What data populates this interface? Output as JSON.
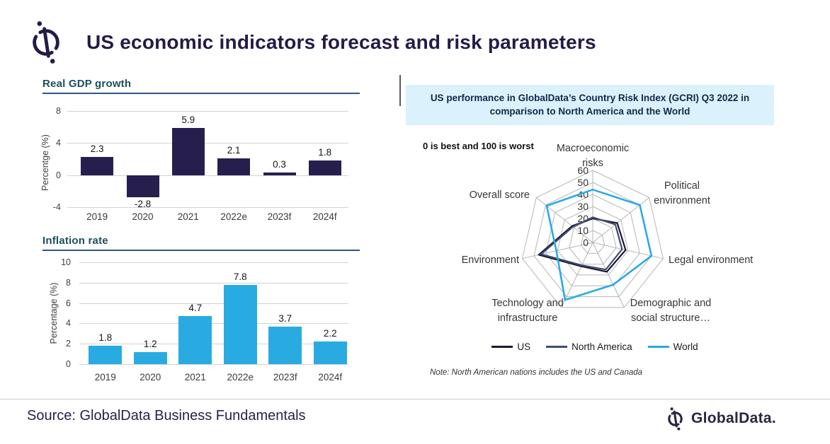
{
  "page": {
    "title": "US economic indicators forecast and risk parameters",
    "source": "Source: GlobalData Business Fundamentals",
    "brand": "GlobalData.",
    "accent_navy": "#221c46",
    "accent_blue": "#29abe2"
  },
  "chart_data": [
    {
      "type": "bar",
      "id": "gdp",
      "title": "Real GDP growth",
      "ylabel": "Percentge (%)",
      "categories": [
        "2019",
        "2020",
        "2021",
        "2022e",
        "2023f",
        "2024f"
      ],
      "values": [
        2.3,
        -2.8,
        5.9,
        2.1,
        0.3,
        1.8
      ],
      "value_labels": [
        "2.3",
        "-2.8",
        "5.9",
        "2.1",
        "0.3",
        "1.8"
      ],
      "yticks": [
        8,
        4,
        0,
        -4
      ],
      "ylim": [
        -4,
        8
      ],
      "bar_color": "#261f4d",
      "grid": true,
      "legend_position": "none"
    },
    {
      "type": "bar",
      "id": "inflation",
      "title": "Inflation rate",
      "ylabel": "Percentage (%)",
      "categories": [
        "2019",
        "2020",
        "2021",
        "2022e",
        "2023f",
        "2024f"
      ],
      "values": [
        1.8,
        1.2,
        4.7,
        7.8,
        3.7,
        2.2
      ],
      "value_labels": [
        "1.8",
        "1.2",
        "4.7",
        "7.8",
        "3.7",
        "2.2"
      ],
      "yticks": [
        10,
        8,
        6,
        4,
        2,
        0
      ],
      "ylim": [
        0,
        10
      ],
      "bar_color": "#29abe2",
      "grid": true,
      "legend_position": "none"
    },
    {
      "type": "radar",
      "id": "gcri",
      "title": "US performance in GlobalData’s Country Risk Index (GCRI) Q3 2022 in comparison to North America and the World",
      "subtitle": "0 is best and 100 is worst",
      "axes": [
        {
          "label": "Macroeconomic risks",
          "lines": [
            "Macroeconomic",
            "risks"
          ]
        },
        {
          "label": "Political environment",
          "lines": [
            "Political",
            "environment"
          ]
        },
        {
          "label": "Legal environment",
          "lines": [
            "Legal environment"
          ]
        },
        {
          "label": "Demographic and social structure…",
          "lines": [
            "Demographic and",
            "social structure…"
          ]
        },
        {
          "label": "Technology and infrastructure",
          "lines": [
            "Technology and",
            "infrastructure"
          ]
        },
        {
          "label": "Environment",
          "lines": [
            "Environment"
          ]
        },
        {
          "label": "Overall score",
          "lines": [
            "Overall score"
          ]
        }
      ],
      "rticks": [
        0,
        10,
        20,
        30,
        40,
        50,
        60
      ],
      "rmax": 60,
      "series": [
        {
          "name": "US",
          "color": "#1c1a33",
          "values": [
            20,
            26,
            28,
            27,
            22,
            46,
            22
          ]
        },
        {
          "name": "North America",
          "color": "#3f4d73",
          "values": [
            21,
            24,
            25,
            25,
            21,
            44,
            21
          ]
        },
        {
          "name": "World",
          "color": "#29abe2",
          "values": [
            44,
            50,
            50,
            39,
            53,
            31,
            49
          ]
        }
      ],
      "legend_position": "bottom",
      "note": "Note: North American nations includes the US and Canada"
    }
  ]
}
